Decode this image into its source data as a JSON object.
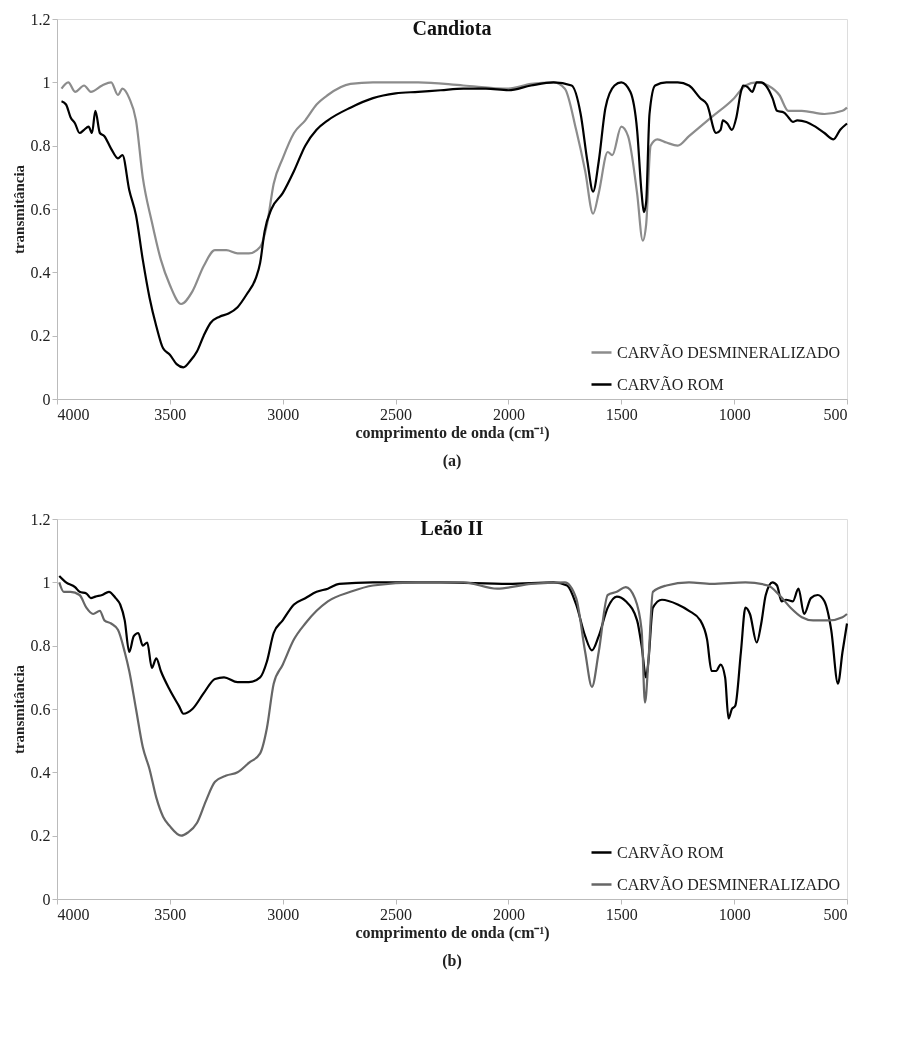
{
  "chart_data": [
    {
      "type": "line",
      "title": "Candiota",
      "xlabel": "comprimento de onda (cm⁻¹)",
      "ylabel": "transmitância",
      "annotations": [
        "(a)"
      ],
      "xlim": [
        4000,
        500
      ],
      "xticks": [
        4000,
        3500,
        3000,
        2500,
        2000,
        1500,
        1000,
        500
      ],
      "ylim": [
        0,
        1.2
      ],
      "yticks": [
        0,
        0.2,
        0.4,
        0.6,
        0.8,
        1,
        1.2
      ],
      "grid": false,
      "legend": "bottom right",
      "series": [
        {
          "name": "CARVÃO DESMINERALIZADO",
          "color": "#8c8c8c",
          "x": [
            3980,
            3950,
            3920,
            3880,
            3850,
            3800,
            3760,
            3730,
            3710,
            3680,
            3650,
            3620,
            3580,
            3540,
            3500,
            3450,
            3400,
            3350,
            3300,
            3250,
            3200,
            3150,
            3100,
            3070,
            3040,
            3000,
            2950,
            2900,
            2850,
            2800,
            2700,
            2600,
            2400,
            2200,
            2000,
            1900,
            1800,
            1750,
            1700,
            1660,
            1625,
            1600,
            1560,
            1540,
            1500,
            1470,
            1430,
            1405,
            1390,
            1370,
            1340,
            1300,
            1250,
            1200,
            1100,
            1000,
            950,
            900,
            850,
            800,
            760,
            700,
            600,
            520,
            500
          ],
          "values": [
            0.98,
            1.0,
            0.97,
            0.99,
            0.97,
            0.99,
            1.0,
            0.96,
            0.98,
            0.95,
            0.88,
            0.7,
            0.56,
            0.44,
            0.36,
            0.3,
            0.34,
            0.42,
            0.47,
            0.47,
            0.46,
            0.46,
            0.48,
            0.55,
            0.68,
            0.76,
            0.84,
            0.88,
            0.93,
            0.96,
            0.995,
            1.0,
            1.0,
            0.99,
            0.98,
            0.995,
            1.0,
            0.98,
            0.85,
            0.72,
            0.585,
            0.65,
            0.78,
            0.77,
            0.86,
            0.83,
            0.65,
            0.5,
            0.55,
            0.8,
            0.82,
            0.81,
            0.8,
            0.83,
            0.89,
            0.95,
            0.99,
            1.0,
            0.99,
            0.96,
            0.91,
            0.91,
            0.9,
            0.91,
            0.92
          ]
        },
        {
          "name": "CARVÃO ROM",
          "color": "#000000",
          "x": [
            3980,
            3960,
            3940,
            3920,
            3900,
            3880,
            3860,
            3845,
            3830,
            3810,
            3790,
            3760,
            3730,
            3710,
            3680,
            3650,
            3620,
            3590,
            3560,
            3530,
            3500,
            3470,
            3440,
            3410,
            3380,
            3350,
            3320,
            3280,
            3240,
            3200,
            3160,
            3120,
            3100,
            3080,
            3050,
            3000,
            2950,
            2900,
            2850,
            2800,
            2700,
            2600,
            2500,
            2400,
            2300,
            2200,
            2100,
            2000,
            1900,
            1800,
            1720,
            1680,
            1650,
            1625,
            1600,
            1570,
            1530,
            1500,
            1460,
            1430,
            1410,
            1400,
            1390,
            1375,
            1350,
            1300,
            1250,
            1200,
            1150,
            1120,
            1080,
            1060,
            1050,
            1030,
            1010,
            990,
            970,
            960,
            940,
            920,
            900,
            880,
            860,
            830,
            810,
            780,
            760,
            740,
            720,
            680,
            640,
            600,
            560,
            530,
            500
          ],
          "values": [
            0.94,
            0.93,
            0.89,
            0.87,
            0.84,
            0.85,
            0.86,
            0.84,
            0.91,
            0.84,
            0.83,
            0.79,
            0.76,
            0.77,
            0.66,
            0.58,
            0.44,
            0.32,
            0.23,
            0.16,
            0.14,
            0.11,
            0.1,
            0.12,
            0.15,
            0.2,
            0.24,
            0.26,
            0.27,
            0.29,
            0.33,
            0.38,
            0.43,
            0.53,
            0.6,
            0.65,
            0.72,
            0.8,
            0.85,
            0.88,
            0.92,
            0.95,
            0.965,
            0.97,
            0.975,
            0.98,
            0.98,
            0.975,
            0.99,
            1.0,
            0.99,
            0.9,
            0.75,
            0.655,
            0.75,
            0.92,
            0.99,
            1.0,
            0.97,
            0.85,
            0.65,
            0.59,
            0.62,
            0.9,
            0.99,
            1.0,
            1.0,
            0.99,
            0.95,
            0.93,
            0.84,
            0.85,
            0.88,
            0.87,
            0.85,
            0.89,
            0.97,
            0.99,
            0.985,
            0.97,
            1.0,
            1.0,
            0.99,
            0.95,
            0.91,
            0.905,
            0.89,
            0.875,
            0.88,
            0.875,
            0.86,
            0.84,
            0.82,
            0.85,
            0.87
          ]
        }
      ]
    },
    {
      "type": "line",
      "title": "Leão II",
      "xlabel": "comprimento de onda (cm⁻¹)",
      "ylabel": "transmitância",
      "annotations": [
        "(b)"
      ],
      "xlim": [
        4000,
        500
      ],
      "xticks": [
        4000,
        3500,
        3000,
        2500,
        2000,
        1500,
        1000,
        500
      ],
      "ylim": [
        0,
        1.2
      ],
      "yticks": [
        0,
        0.2,
        0.4,
        0.6,
        0.8,
        1,
        1.2
      ],
      "grid": false,
      "legend": "bottom right",
      "series": [
        {
          "name": "CARVÃO ROM",
          "color": "#000000",
          "x": [
            3990,
            3960,
            3920,
            3900,
            3870,
            3850,
            3830,
            3800,
            3770,
            3740,
            3720,
            3700,
            3680,
            3660,
            3640,
            3620,
            3600,
            3580,
            3560,
            3540,
            3500,
            3460,
            3440,
            3400,
            3350,
            3300,
            3260,
            3200,
            3150,
            3100,
            3070,
            3040,
            3000,
            2950,
            2900,
            2850,
            2800,
            2750,
            2600,
            2300,
            2000,
            1800,
            1740,
            1700,
            1660,
            1630,
            1600,
            1560,
            1520,
            1480,
            1430,
            1410,
            1390,
            1380,
            1360,
            1320,
            1250,
            1200,
            1150,
            1120,
            1100,
            1080,
            1060,
            1040,
            1025,
            1010,
            995,
            970,
            950,
            930,
            900,
            880,
            860,
            830,
            810,
            790,
            770,
            740,
            715,
            690,
            660,
            630,
            600,
            570,
            540,
            520,
            500
          ],
          "values": [
            1.02,
            1.0,
            0.985,
            0.97,
            0.965,
            0.95,
            0.955,
            0.96,
            0.97,
            0.95,
            0.93,
            0.88,
            0.78,
            0.83,
            0.84,
            0.8,
            0.81,
            0.73,
            0.76,
            0.72,
            0.66,
            0.61,
            0.585,
            0.6,
            0.65,
            0.695,
            0.7,
            0.685,
            0.685,
            0.7,
            0.75,
            0.84,
            0.88,
            0.93,
            0.95,
            0.97,
            0.98,
            0.995,
            1.0,
            1.0,
            0.995,
            1.0,
            0.99,
            0.93,
            0.83,
            0.785,
            0.83,
            0.92,
            0.955,
            0.94,
            0.88,
            0.8,
            0.7,
            0.75,
            0.92,
            0.945,
            0.93,
            0.91,
            0.88,
            0.82,
            0.72,
            0.72,
            0.74,
            0.7,
            0.57,
            0.6,
            0.61,
            0.78,
            0.92,
            0.9,
            0.81,
            0.87,
            0.96,
            1.0,
            0.99,
            0.94,
            0.945,
            0.94,
            0.98,
            0.9,
            0.95,
            0.96,
            0.94,
            0.85,
            0.68,
            0.78,
            0.87
          ]
        },
        {
          "name": "CARVÃO DESMINERALIZADO",
          "color": "#666666",
          "x": [
            3990,
            3970,
            3940,
            3900,
            3870,
            3840,
            3810,
            3790,
            3760,
            3730,
            3700,
            3680,
            3650,
            3620,
            3590,
            3560,
            3530,
            3500,
            3450,
            3420,
            3380,
            3340,
            3300,
            3250,
            3200,
            3150,
            3100,
            3070,
            3040,
            3000,
            2950,
            2900,
            2850,
            2800,
            2700,
            2600,
            2400,
            2200,
            2050,
            1900,
            1750,
            1700,
            1660,
            1630,
            1600,
            1560,
            1520,
            1480,
            1440,
            1410,
            1395,
            1380,
            1360,
            1300,
            1200,
            1100,
            950,
            850,
            800,
            750,
            700,
            650,
            580,
            520,
            500
          ],
          "values": [
            1.0,
            0.97,
            0.97,
            0.96,
            0.92,
            0.9,
            0.91,
            0.88,
            0.87,
            0.85,
            0.78,
            0.72,
            0.6,
            0.48,
            0.41,
            0.32,
            0.26,
            0.23,
            0.2,
            0.21,
            0.24,
            0.31,
            0.37,
            0.39,
            0.4,
            0.43,
            0.46,
            0.54,
            0.68,
            0.74,
            0.82,
            0.87,
            0.91,
            0.94,
            0.97,
            0.99,
            1.0,
            1.0,
            0.98,
            0.995,
            1.0,
            0.95,
            0.78,
            0.67,
            0.78,
            0.96,
            0.97,
            0.985,
            0.95,
            0.85,
            0.62,
            0.75,
            0.97,
            0.99,
            1.0,
            0.995,
            1.0,
            0.99,
            0.96,
            0.92,
            0.89,
            0.88,
            0.88,
            0.89,
            0.9
          ]
        }
      ]
    }
  ]
}
